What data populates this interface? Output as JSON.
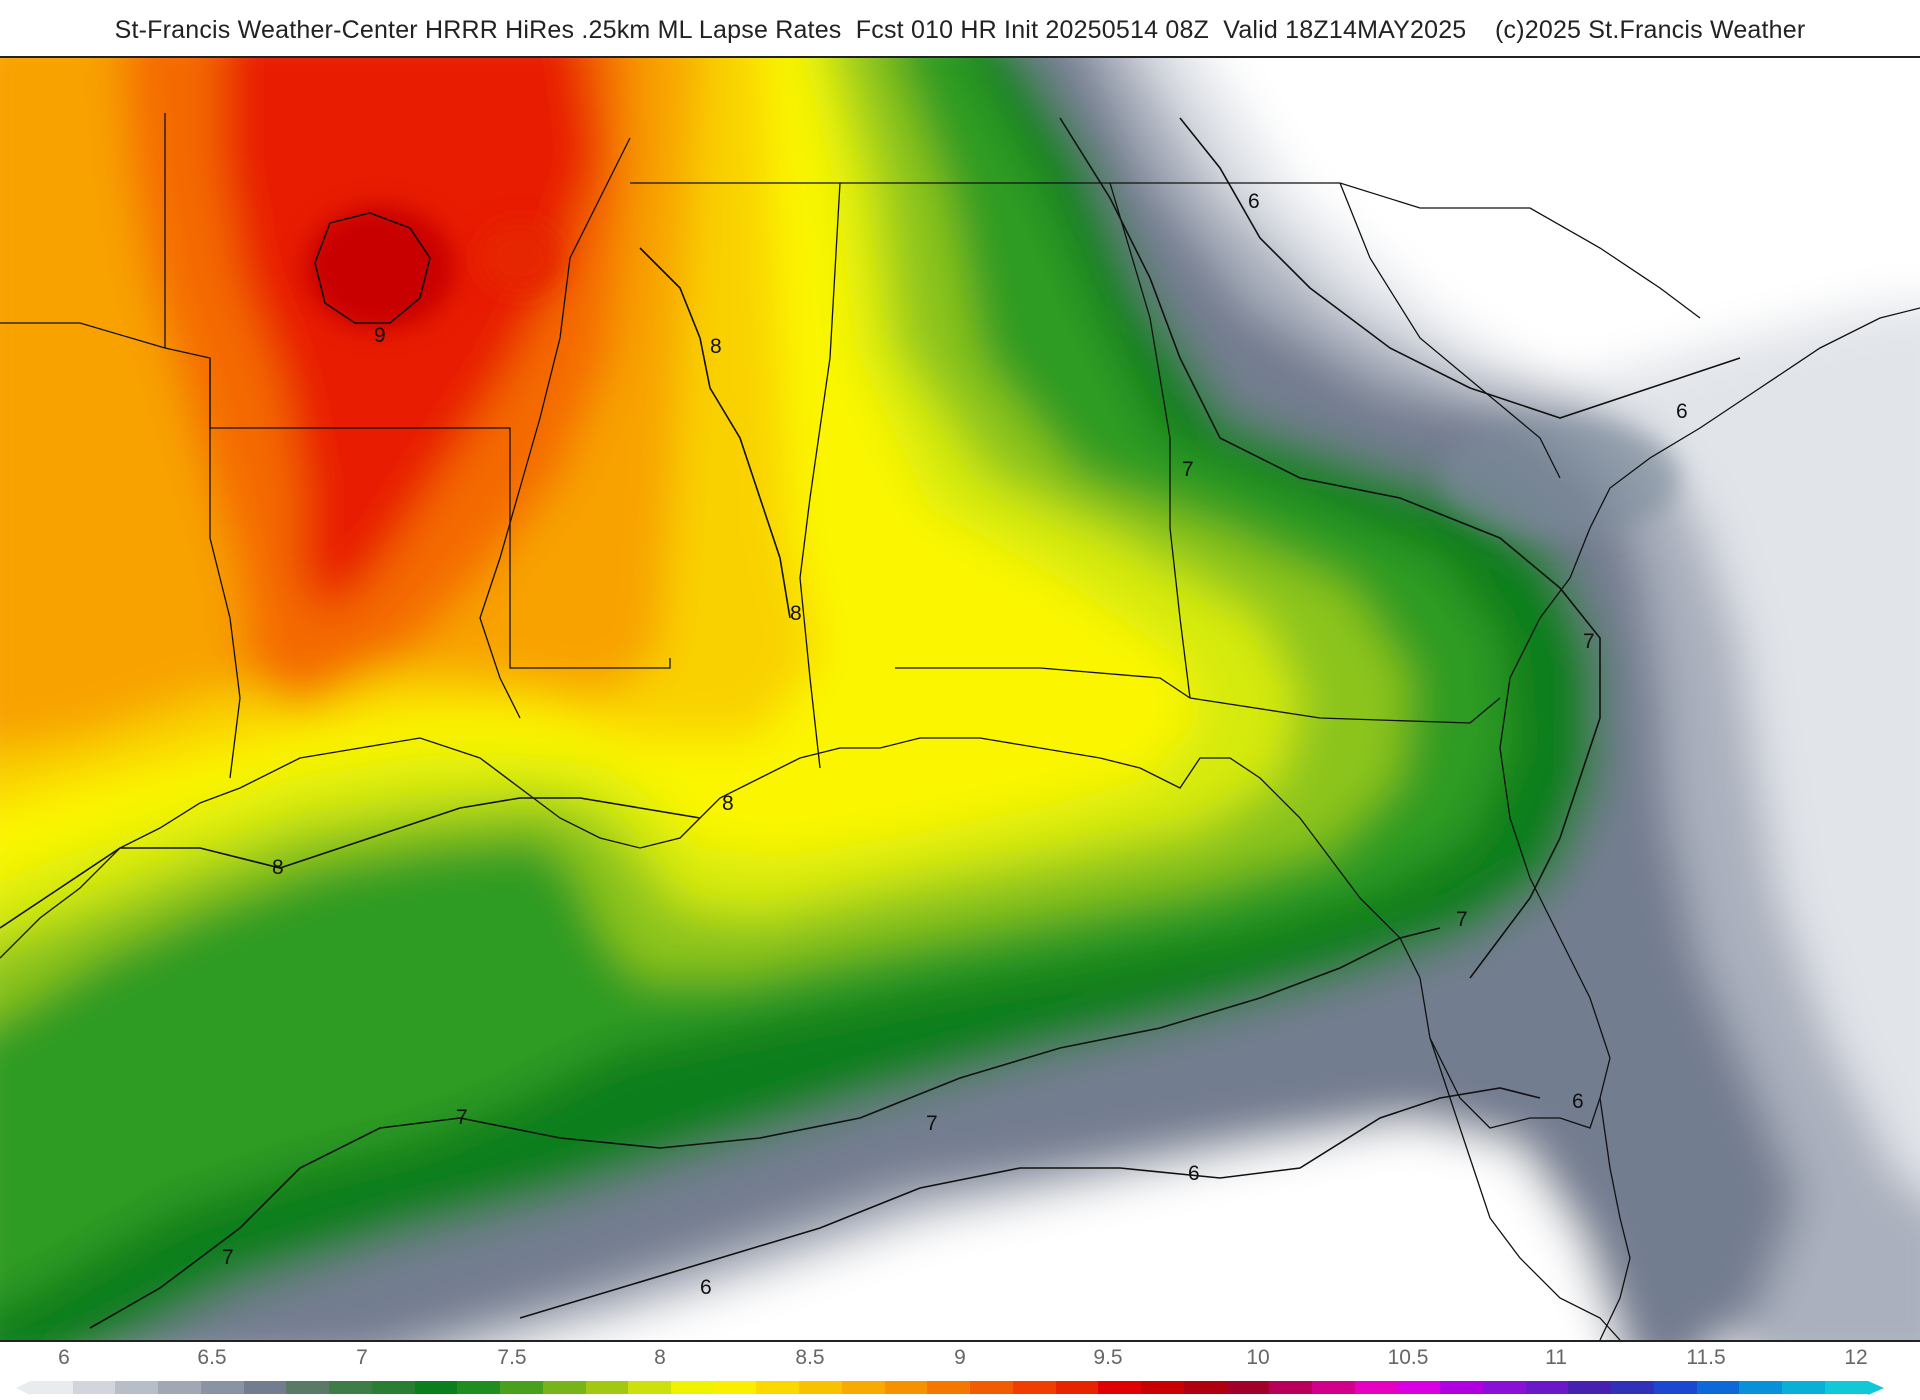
{
  "header": {
    "title": "St-Francis Weather-Center HRRR HiRes .25km ML Lapse Rates  Fcst 010 HR Init 20250514 08Z  Valid 18Z14MAY2025    (c)2025 St.Francis Weather"
  },
  "map": {
    "contour_labels": [
      "6",
      "6",
      "6",
      "6",
      "6",
      "7",
      "7",
      "7",
      "7",
      "7",
      "7",
      "8",
      "8",
      "8",
      "8",
      "9"
    ],
    "colors": {
      "none": "#ffffff",
      "gray_light": "#e1e4e9",
      "gray_mid": "#aab0bd",
      "gray_dark": "#737d90",
      "green_dark": "#097e1e",
      "green": "#2f9b23",
      "green_light": "#8cc41a",
      "yellow_green": "#d6ea0c",
      "yellow": "#fbf600",
      "gold": "#f9d100",
      "orange": "#f8a200",
      "orange_red": "#f46a00",
      "red": "#e81c00",
      "dark_red": "#c80000"
    }
  },
  "legend": {
    "ticks": [
      "6",
      "6.5",
      "7",
      "7.5",
      "8",
      "8.5",
      "9",
      "9.5",
      "10",
      "10.5",
      "11",
      "11.5",
      "12"
    ],
    "colorbar": [
      "#e9ecef",
      "#d2d6dc",
      "#b8bec8",
      "#a0a8b5",
      "#8a93a3",
      "#727d90",
      "#587a66",
      "#3f7d48",
      "#2a7e33",
      "#0b7f1e",
      "#1f8e1e",
      "#48a01c",
      "#77b41a",
      "#a3c814",
      "#cde00b",
      "#f0f300",
      "#fbef00",
      "#fbd900",
      "#f9c200",
      "#f8aa00",
      "#f69200",
      "#f47800",
      "#f25c00",
      "#ee3f00",
      "#e82300",
      "#e00000",
      "#c80000",
      "#b00010",
      "#a0002a",
      "#b8005a",
      "#d0008a",
      "#e600c0",
      "#d800e0",
      "#b000e0",
      "#8a10d8",
      "#6a18c8",
      "#4820b0",
      "#3030b8",
      "#1c48d0",
      "#0c6ad8",
      "#0890d8",
      "#08b0d8",
      "#10c8d8"
    ]
  }
}
